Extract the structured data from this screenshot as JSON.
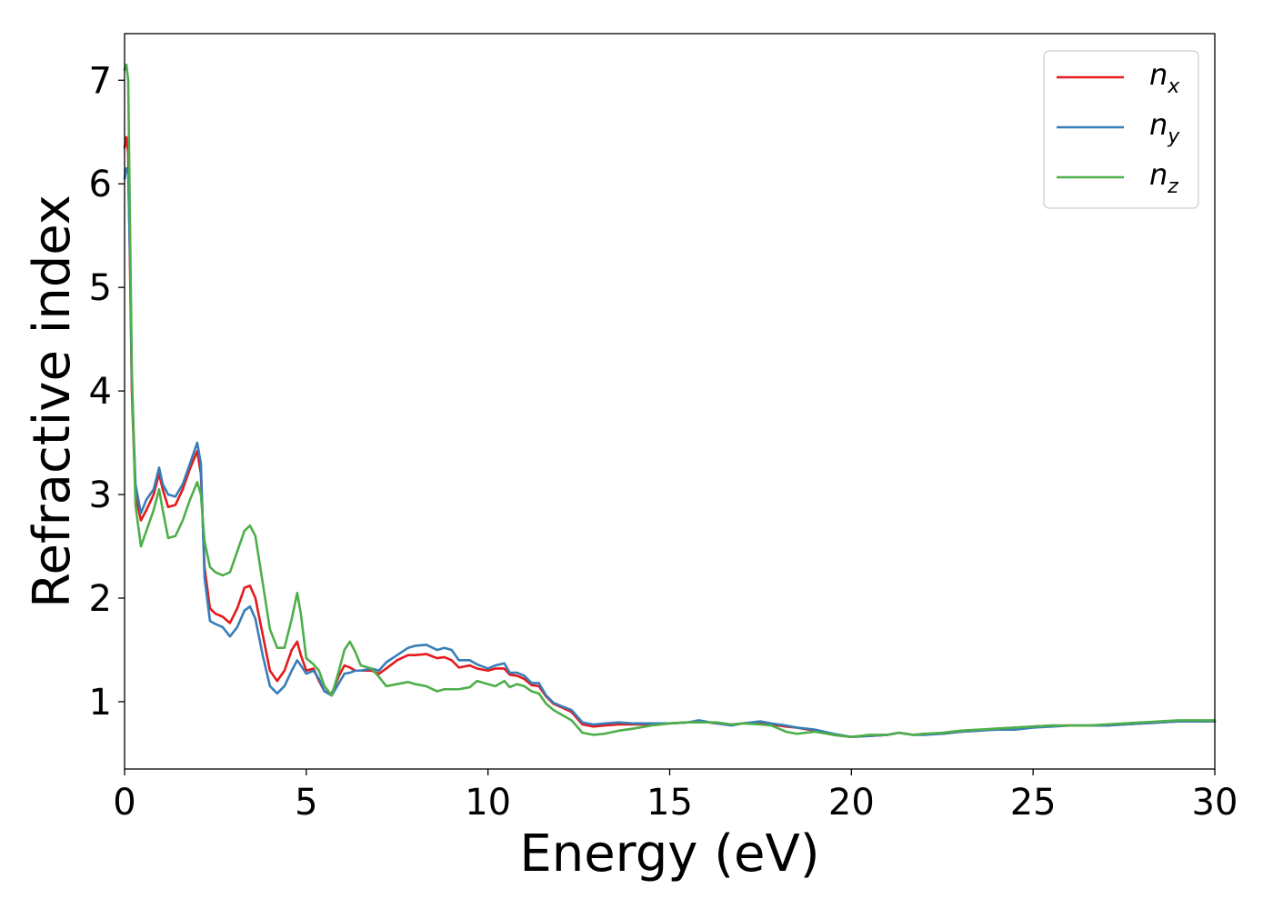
{
  "chart_data": {
    "type": "line",
    "xlabel": "Energy (eV)",
    "ylabel": "Refractive index",
    "xlim": [
      0,
      30
    ],
    "ylim": [
      0.35,
      7.45
    ],
    "xticks": [
      0,
      5,
      10,
      15,
      20,
      25,
      30
    ],
    "yticks": [
      1,
      2,
      3,
      4,
      5,
      6,
      7
    ],
    "grid": false,
    "legend_position": "top-right",
    "series": [
      {
        "name": "n",
        "subscript": "x",
        "color": "#e41a1c",
        "x": [
          0.0,
          0.05,
          0.1,
          0.15,
          0.2,
          0.3,
          0.45,
          0.6,
          0.8,
          0.95,
          1.05,
          1.2,
          1.4,
          1.6,
          1.8,
          2.0,
          2.1,
          2.2,
          2.35,
          2.5,
          2.7,
          2.9,
          3.1,
          3.3,
          3.45,
          3.6,
          3.8,
          4.0,
          4.2,
          4.4,
          4.6,
          4.75,
          4.85,
          5.0,
          5.2,
          5.35,
          5.5,
          5.7,
          5.9,
          6.05,
          6.2,
          6.35,
          6.5,
          6.8,
          7.0,
          7.2,
          7.5,
          7.8,
          8.0,
          8.3,
          8.6,
          8.8,
          9.0,
          9.2,
          9.5,
          9.7,
          10.0,
          10.2,
          10.45,
          10.6,
          10.8,
          11.0,
          11.2,
          11.4,
          11.6,
          11.8,
          12.0,
          12.3,
          12.6,
          12.9,
          13.2,
          13.6,
          14.0,
          14.5,
          15.0,
          15.5,
          15.8,
          16.3,
          16.7,
          17.0,
          17.5,
          17.8,
          18.2,
          18.5,
          19.0,
          19.5,
          20.0,
          20.5,
          21.0,
          21.3,
          21.7,
          22.0,
          22.5,
          23.0,
          23.5,
          24.0,
          24.5,
          25.0,
          25.5,
          26.0,
          26.5,
          27.0,
          27.5,
          28.0,
          28.5,
          29.0,
          29.5,
          30.0
        ],
        "y": [
          6.35,
          6.45,
          6.3,
          5.2,
          4.0,
          3.0,
          2.75,
          2.85,
          3.0,
          3.2,
          3.05,
          2.88,
          2.9,
          3.05,
          3.25,
          3.42,
          3.2,
          2.3,
          1.9,
          1.85,
          1.82,
          1.76,
          1.9,
          2.1,
          2.12,
          2.0,
          1.65,
          1.3,
          1.2,
          1.3,
          1.5,
          1.58,
          1.45,
          1.3,
          1.32,
          1.2,
          1.1,
          1.08,
          1.25,
          1.35,
          1.33,
          1.3,
          1.3,
          1.3,
          1.27,
          1.32,
          1.4,
          1.45,
          1.45,
          1.46,
          1.42,
          1.43,
          1.4,
          1.33,
          1.35,
          1.32,
          1.3,
          1.32,
          1.32,
          1.26,
          1.25,
          1.22,
          1.16,
          1.15,
          1.05,
          0.98,
          0.95,
          0.9,
          0.78,
          0.76,
          0.77,
          0.78,
          0.78,
          0.78,
          0.79,
          0.8,
          0.81,
          0.79,
          0.78,
          0.79,
          0.8,
          0.78,
          0.76,
          0.75,
          0.72,
          0.68,
          0.66,
          0.67,
          0.68,
          0.7,
          0.68,
          0.69,
          0.69,
          0.71,
          0.72,
          0.74,
          0.75,
          0.76,
          0.77,
          0.77,
          0.77,
          0.77,
          0.78,
          0.79,
          0.8,
          0.81,
          0.81,
          0.81
        ]
      },
      {
        "name": "n",
        "subscript": "y",
        "color": "#377eb8",
        "x": [
          0.0,
          0.05,
          0.1,
          0.15,
          0.2,
          0.3,
          0.45,
          0.6,
          0.8,
          0.95,
          1.05,
          1.2,
          1.4,
          1.6,
          1.8,
          2.0,
          2.1,
          2.2,
          2.35,
          2.5,
          2.7,
          2.9,
          3.1,
          3.3,
          3.45,
          3.6,
          3.8,
          4.0,
          4.2,
          4.4,
          4.6,
          4.75,
          4.85,
          5.0,
          5.2,
          5.35,
          5.5,
          5.7,
          5.9,
          6.05,
          6.2,
          6.35,
          6.5,
          6.8,
          7.0,
          7.2,
          7.5,
          7.8,
          8.0,
          8.3,
          8.6,
          8.8,
          9.0,
          9.2,
          9.5,
          9.7,
          10.0,
          10.2,
          10.45,
          10.6,
          10.8,
          11.0,
          11.2,
          11.4,
          11.6,
          11.8,
          12.0,
          12.3,
          12.6,
          12.9,
          13.2,
          13.6,
          14.0,
          14.5,
          15.0,
          15.5,
          15.8,
          16.3,
          16.7,
          17.0,
          17.5,
          17.8,
          18.2,
          18.5,
          19.0,
          19.5,
          20.0,
          20.5,
          21.0,
          21.3,
          21.7,
          22.0,
          22.5,
          23.0,
          23.5,
          24.0,
          24.5,
          25.0,
          25.5,
          26.0,
          26.5,
          27.0,
          27.5,
          28.0,
          28.5,
          29.0,
          29.5,
          30.0
        ],
        "y": [
          6.05,
          6.15,
          6.1,
          5.3,
          4.1,
          3.1,
          2.82,
          2.95,
          3.05,
          3.26,
          3.1,
          3.0,
          2.98,
          3.1,
          3.3,
          3.5,
          3.3,
          2.2,
          1.78,
          1.75,
          1.72,
          1.63,
          1.72,
          1.88,
          1.92,
          1.8,
          1.45,
          1.15,
          1.08,
          1.15,
          1.3,
          1.4,
          1.35,
          1.27,
          1.3,
          1.22,
          1.1,
          1.06,
          1.18,
          1.27,
          1.28,
          1.3,
          1.3,
          1.32,
          1.3,
          1.38,
          1.45,
          1.52,
          1.54,
          1.55,
          1.5,
          1.52,
          1.5,
          1.4,
          1.4,
          1.36,
          1.32,
          1.35,
          1.37,
          1.28,
          1.28,
          1.25,
          1.18,
          1.18,
          1.06,
          0.99,
          0.96,
          0.92,
          0.8,
          0.78,
          0.79,
          0.8,
          0.79,
          0.79,
          0.79,
          0.8,
          0.82,
          0.79,
          0.77,
          0.79,
          0.81,
          0.79,
          0.77,
          0.75,
          0.73,
          0.69,
          0.66,
          0.67,
          0.68,
          0.7,
          0.68,
          0.68,
          0.69,
          0.71,
          0.72,
          0.73,
          0.73,
          0.75,
          0.76,
          0.77,
          0.77,
          0.77,
          0.78,
          0.79,
          0.8,
          0.81,
          0.81,
          0.81
        ]
      },
      {
        "name": "n",
        "subscript": "z",
        "color": "#4daf4a",
        "x": [
          0.0,
          0.05,
          0.1,
          0.15,
          0.2,
          0.3,
          0.45,
          0.6,
          0.8,
          0.95,
          1.05,
          1.2,
          1.4,
          1.6,
          1.8,
          2.0,
          2.1,
          2.2,
          2.35,
          2.5,
          2.7,
          2.9,
          3.1,
          3.3,
          3.45,
          3.6,
          3.8,
          4.0,
          4.2,
          4.4,
          4.6,
          4.75,
          4.85,
          5.0,
          5.2,
          5.35,
          5.5,
          5.7,
          5.9,
          6.05,
          6.2,
          6.35,
          6.5,
          6.8,
          7.0,
          7.2,
          7.5,
          7.8,
          8.0,
          8.3,
          8.6,
          8.8,
          9.0,
          9.2,
          9.5,
          9.7,
          10.0,
          10.2,
          10.45,
          10.6,
          10.8,
          11.0,
          11.2,
          11.4,
          11.6,
          11.8,
          12.0,
          12.3,
          12.6,
          12.9,
          13.2,
          13.6,
          14.0,
          14.5,
          15.0,
          15.5,
          15.8,
          16.3,
          16.7,
          17.0,
          17.5,
          17.8,
          18.2,
          18.5,
          19.0,
          19.5,
          20.0,
          20.5,
          21.0,
          21.3,
          21.7,
          22.0,
          22.5,
          23.0,
          23.5,
          24.0,
          24.5,
          25.0,
          25.5,
          26.0,
          26.5,
          27.0,
          27.5,
          28.0,
          28.5,
          29.0,
          29.5,
          30.0
        ],
        "y": [
          7.1,
          7.15,
          7.0,
          5.6,
          4.2,
          2.9,
          2.5,
          2.65,
          2.85,
          3.05,
          2.85,
          2.58,
          2.6,
          2.75,
          2.95,
          3.12,
          3.0,
          2.55,
          2.3,
          2.25,
          2.22,
          2.25,
          2.45,
          2.65,
          2.7,
          2.6,
          2.15,
          1.7,
          1.52,
          1.52,
          1.8,
          2.05,
          1.85,
          1.42,
          1.36,
          1.3,
          1.15,
          1.06,
          1.3,
          1.5,
          1.58,
          1.48,
          1.35,
          1.32,
          1.24,
          1.15,
          1.17,
          1.19,
          1.17,
          1.15,
          1.1,
          1.12,
          1.12,
          1.12,
          1.14,
          1.2,
          1.17,
          1.15,
          1.2,
          1.14,
          1.17,
          1.15,
          1.1,
          1.08,
          0.98,
          0.92,
          0.88,
          0.82,
          0.7,
          0.68,
          0.69,
          0.72,
          0.74,
          0.77,
          0.79,
          0.8,
          0.8,
          0.8,
          0.78,
          0.79,
          0.78,
          0.77,
          0.71,
          0.69,
          0.71,
          0.68,
          0.66,
          0.68,
          0.68,
          0.7,
          0.68,
          0.69,
          0.7,
          0.72,
          0.73,
          0.74,
          0.75,
          0.76,
          0.77,
          0.77,
          0.77,
          0.78,
          0.79,
          0.8,
          0.81,
          0.82,
          0.82,
          0.82
        ]
      }
    ]
  }
}
